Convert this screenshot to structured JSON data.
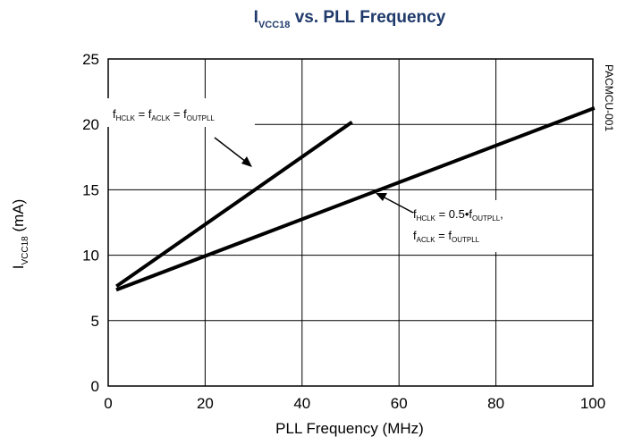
{
  "chart_data": {
    "type": "line",
    "title": {
      "main": "I",
      "sub": "VCC18",
      "rest": " vs. PLL Frequency"
    },
    "xlabel": "PLL Frequency (MHz)",
    "ylabel": {
      "main": "I",
      "sub": "VCC18",
      "rest": " (mA)"
    },
    "xlim": [
      0,
      100
    ],
    "ylim": [
      0,
      25
    ],
    "x_ticks": [
      "0",
      "20",
      "40",
      "60",
      "80",
      "100"
    ],
    "y_ticks": [
      "0",
      "5",
      "10",
      "15",
      "20",
      "25"
    ],
    "grid": true,
    "figure_code": "PACMCU-001",
    "series": [
      {
        "x": [
          2,
          50
        ],
        "y": [
          7.7,
          20.1
        ]
      },
      {
        "x": [
          2,
          100
        ],
        "y": [
          7.4,
          21.2
        ]
      }
    ],
    "annotations": {
      "line1": {
        "p1": "f",
        "s1": "HCLK",
        "p2": " = f",
        "s2": "ACLK",
        "p3": " = f",
        "s3": "OUTPLL"
      },
      "line2": {
        "row1": {
          "p1": "f",
          "s1": "HCLK",
          "p2": " = 0.5•f",
          "s2": "OUTPLL",
          "p3": ","
        },
        "row2": {
          "p1": "f",
          "s1": "ACLK",
          "p2": " = f",
          "s2": "OUTPLL"
        }
      }
    }
  }
}
